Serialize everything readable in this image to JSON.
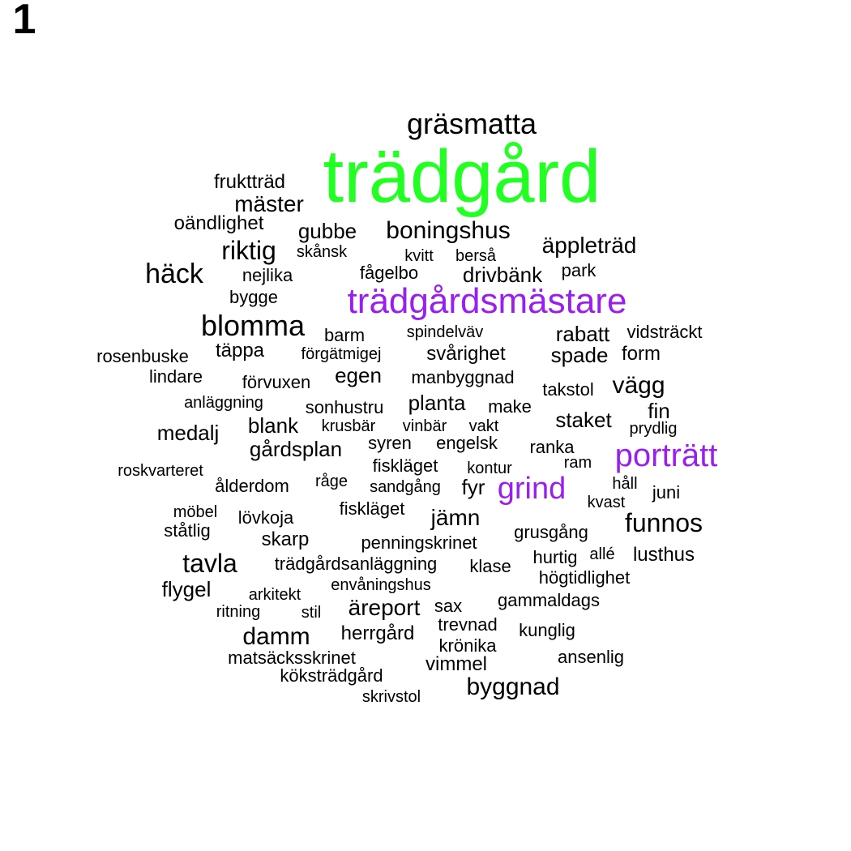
{
  "panel_label": "1",
  "colors": {
    "default": "#000000",
    "green": "#22ff22",
    "purple": "#9a1fee"
  },
  "words": [
    {
      "text": "trädgård",
      "color": "green"
    },
    {
      "text": "gräsmatta",
      "color": "default"
    },
    {
      "text": "fruktträd",
      "color": "default"
    },
    {
      "text": "mäster",
      "color": "default"
    },
    {
      "text": "oändlighet",
      "color": "default"
    },
    {
      "text": "gubbe",
      "color": "default"
    },
    {
      "text": "boningshus",
      "color": "default"
    },
    {
      "text": "riktig",
      "color": "default"
    },
    {
      "text": "skånsk",
      "color": "default"
    },
    {
      "text": "kvitt",
      "color": "default"
    },
    {
      "text": "berså",
      "color": "default"
    },
    {
      "text": "äppleträd",
      "color": "default"
    },
    {
      "text": "häck",
      "color": "default"
    },
    {
      "text": "nejlika",
      "color": "default"
    },
    {
      "text": "fågelbo",
      "color": "default"
    },
    {
      "text": "drivbänk",
      "color": "default"
    },
    {
      "text": "park",
      "color": "default"
    },
    {
      "text": "bygge",
      "color": "default"
    },
    {
      "text": "trädgårdsmästare",
      "color": "purple"
    },
    {
      "text": "blomma",
      "color": "default"
    },
    {
      "text": "barm",
      "color": "default"
    },
    {
      "text": "spindelväv",
      "color": "default"
    },
    {
      "text": "rabatt",
      "color": "default"
    },
    {
      "text": "vidsträckt",
      "color": "default"
    },
    {
      "text": "rosenbuske",
      "color": "default"
    },
    {
      "text": "täppa",
      "color": "default"
    },
    {
      "text": "förgätmigej",
      "color": "default"
    },
    {
      "text": "svårighet",
      "color": "default"
    },
    {
      "text": "spade",
      "color": "default"
    },
    {
      "text": "form",
      "color": "default"
    },
    {
      "text": "lindare",
      "color": "default"
    },
    {
      "text": "förvuxen",
      "color": "default"
    },
    {
      "text": "egen",
      "color": "default"
    },
    {
      "text": "manbyggnad",
      "color": "default"
    },
    {
      "text": "takstol",
      "color": "default"
    },
    {
      "text": "vägg",
      "color": "default"
    },
    {
      "text": "anläggning",
      "color": "default"
    },
    {
      "text": "sonhustru",
      "color": "default"
    },
    {
      "text": "planta",
      "color": "default"
    },
    {
      "text": "make",
      "color": "default"
    },
    {
      "text": "fin",
      "color": "default"
    },
    {
      "text": "medalj",
      "color": "default"
    },
    {
      "text": "blank",
      "color": "default"
    },
    {
      "text": "krusbär",
      "color": "default"
    },
    {
      "text": "vinbär",
      "color": "default"
    },
    {
      "text": "vakt",
      "color": "default"
    },
    {
      "text": "staket",
      "color": "default"
    },
    {
      "text": "prydlig",
      "color": "default"
    },
    {
      "text": "gårdsplan",
      "color": "default"
    },
    {
      "text": "syren",
      "color": "default"
    },
    {
      "text": "engelsk",
      "color": "default"
    },
    {
      "text": "ranka",
      "color": "default"
    },
    {
      "text": "porträtt",
      "color": "purple"
    },
    {
      "text": "roskvarteret",
      "color": "default"
    },
    {
      "text": "fiskläget",
      "color": "default"
    },
    {
      "text": "kontur",
      "color": "default"
    },
    {
      "text": "ram",
      "color": "default"
    },
    {
      "text": "ålderdom",
      "color": "default"
    },
    {
      "text": "råge",
      "color": "default"
    },
    {
      "text": "sandgång",
      "color": "default"
    },
    {
      "text": "fyr",
      "color": "default"
    },
    {
      "text": "grind",
      "color": "purple"
    },
    {
      "text": "håll",
      "color": "default"
    },
    {
      "text": "juni",
      "color": "default"
    },
    {
      "text": "kvast",
      "color": "default"
    },
    {
      "text": "möbel",
      "color": "default"
    },
    {
      "text": "lövkoja",
      "color": "default"
    },
    {
      "text": "fiskläget",
      "color": "default"
    },
    {
      "text": "jämn",
      "color": "default"
    },
    {
      "text": "funnos",
      "color": "default"
    },
    {
      "text": "ståtlig",
      "color": "default"
    },
    {
      "text": "skarp",
      "color": "default"
    },
    {
      "text": "penningskrinet",
      "color": "default"
    },
    {
      "text": "grusgång",
      "color": "default"
    },
    {
      "text": "tavla",
      "color": "default"
    },
    {
      "text": "trädgårdsanläggning",
      "color": "default"
    },
    {
      "text": "klase",
      "color": "default"
    },
    {
      "text": "hurtig",
      "color": "default"
    },
    {
      "text": "allé",
      "color": "default"
    },
    {
      "text": "lusthus",
      "color": "default"
    },
    {
      "text": "flygel",
      "color": "default"
    },
    {
      "text": "envåningshus",
      "color": "default"
    },
    {
      "text": "högtidlighet",
      "color": "default"
    },
    {
      "text": "arkitekt",
      "color": "default"
    },
    {
      "text": "ritning",
      "color": "default"
    },
    {
      "text": "stil",
      "color": "default"
    },
    {
      "text": "äreport",
      "color": "default"
    },
    {
      "text": "sax",
      "color": "default"
    },
    {
      "text": "gammaldags",
      "color": "default"
    },
    {
      "text": "trevnad",
      "color": "default"
    },
    {
      "text": "kunglig",
      "color": "default"
    },
    {
      "text": "damm",
      "color": "default"
    },
    {
      "text": "herrgård",
      "color": "default"
    },
    {
      "text": "krönika",
      "color": "default"
    },
    {
      "text": "matsäcksskrinet",
      "color": "default"
    },
    {
      "text": "ansenlig",
      "color": "default"
    },
    {
      "text": "vimmel",
      "color": "default"
    },
    {
      "text": "köksträdgård",
      "color": "default"
    },
    {
      "text": "byggnad",
      "color": "default"
    },
    {
      "text": "skrivstol",
      "color": "default"
    }
  ]
}
